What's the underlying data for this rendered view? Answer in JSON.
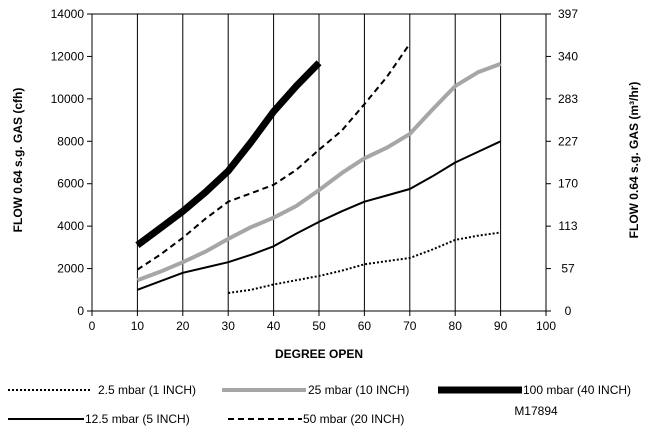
{
  "chart_data": {
    "type": "line",
    "xlabel": "DEGREE OPEN",
    "ylabel": "FLOW 0.64 s.g. GAS (cfh)",
    "y2label": "FLOW 0.64 s.g. GAS (m³/hr)",
    "xlim": [
      0,
      100
    ],
    "ylim": [
      0,
      14000
    ],
    "x_ticks": [
      "0",
      "10",
      "20",
      "30",
      "40",
      "50",
      "60",
      "70",
      "80",
      "90",
      "100"
    ],
    "y_ticks": [
      "0",
      "2000",
      "4000",
      "6000",
      "8000",
      "10000",
      "12000",
      "14000"
    ],
    "y2_ticks": [
      "0",
      "57",
      "113",
      "170",
      "227",
      "283",
      "340",
      "397"
    ],
    "grid": "vertical",
    "legend_position": "bottom",
    "series": [
      {
        "name": "2.5 mbar (1 INCH)",
        "style": "dotted",
        "color": "#000000",
        "x": [
          30,
          35,
          40,
          45,
          50,
          55,
          60,
          65,
          70,
          75,
          80,
          85,
          90
        ],
        "y": [
          850,
          1000,
          1250,
          1450,
          1650,
          1900,
          2200,
          2350,
          2500,
          2900,
          3350,
          3550,
          3700
        ]
      },
      {
        "name": "25 mbar (10 INCH)",
        "style": "thick-solid",
        "color": "#a6a6a6",
        "x": [
          10,
          15,
          20,
          25,
          30,
          35,
          40,
          45,
          50,
          55,
          60,
          65,
          70,
          75,
          80,
          85,
          90
        ],
        "y": [
          1450,
          1850,
          2300,
          2800,
          3400,
          3950,
          4400,
          4950,
          5700,
          6500,
          7200,
          7700,
          8350,
          9500,
          10600,
          11250,
          11650
        ]
      },
      {
        "name": "100 mbar (40 INCH)",
        "style": "heavy-solid",
        "color": "#000000",
        "x": [
          10,
          15,
          20,
          25,
          30,
          35,
          40,
          45,
          50
        ],
        "y": [
          3100,
          3900,
          4700,
          5600,
          6600,
          7950,
          9400,
          10600,
          11700
        ]
      },
      {
        "name": "12.5 mbar (5 INCH)",
        "style": "solid",
        "color": "#000000",
        "x": [
          10,
          15,
          20,
          25,
          30,
          35,
          40,
          45,
          50,
          55,
          60,
          65,
          70,
          75,
          80,
          85,
          90
        ],
        "y": [
          1000,
          1400,
          1800,
          2050,
          2300,
          2650,
          3050,
          3650,
          4200,
          4700,
          5150,
          5450,
          5750,
          6350,
          7000,
          7500,
          8000
        ]
      },
      {
        "name": "50 mbar (20 INCH)",
        "style": "dashed",
        "color": "#000000",
        "x": [
          10,
          15,
          20,
          25,
          30,
          35,
          40,
          45,
          50,
          55,
          60,
          65,
          70
        ],
        "y": [
          1950,
          2650,
          3450,
          4350,
          5150,
          5550,
          5950,
          6650,
          7600,
          8500,
          9750,
          11050,
          12600
        ]
      }
    ],
    "code": "M17894"
  }
}
